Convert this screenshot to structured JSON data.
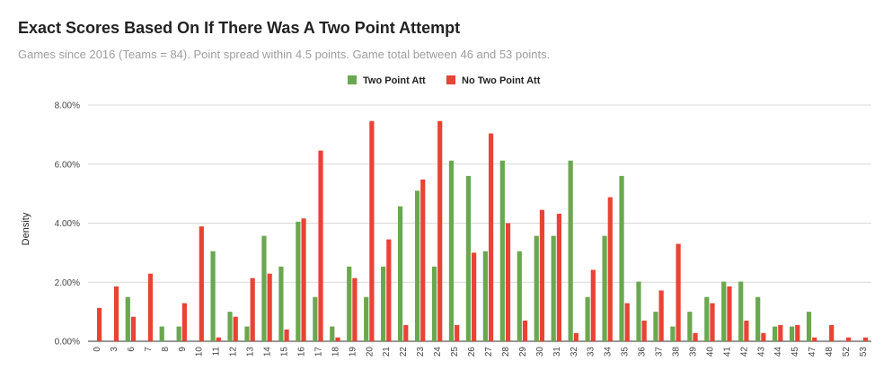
{
  "title": "Exact Scores Based On If There Was A Two Point Attempt",
  "subtitle": "Games since 2016 (Teams = 84). Point spread within 4.5 points. Game total between 46 and 53 points.",
  "colors": {
    "two_point": "#6aa84f",
    "no_two_point": "#e94335",
    "grid": "#d9d9d9",
    "axis": "#333333"
  },
  "chart_data": {
    "type": "bar",
    "title": "Exact Scores Based On If There Was A Two Point Attempt",
    "subtitle": "Games since 2016 (Teams = 84). Point spread within 4.5 points. Game total between 46 and 53 points.",
    "xlabel": "",
    "ylabel": "Density",
    "ylim": [
      0,
      8
    ],
    "y_unit": "%",
    "y_ticks": [
      "0.00%",
      "2.00%",
      "4.00%",
      "6.00%",
      "8.00%"
    ],
    "grid": true,
    "legend_position": "top",
    "categories": [
      "0",
      "3",
      "6",
      "7",
      "8",
      "9",
      "10",
      "11",
      "12",
      "13",
      "14",
      "15",
      "16",
      "17",
      "18",
      "19",
      "20",
      "21",
      "22",
      "23",
      "24",
      "25",
      "26",
      "27",
      "28",
      "29",
      "30",
      "31",
      "32",
      "33",
      "34",
      "35",
      "36",
      "37",
      "38",
      "39",
      "40",
      "41",
      "42",
      "43",
      "44",
      "45",
      "47",
      "48",
      "52",
      "53"
    ],
    "series": [
      {
        "name": "Two Point Att",
        "color": "#6aa84f",
        "values": [
          0,
          0,
          1.5,
          0,
          0.5,
          0.5,
          0,
          3.05,
          1.0,
          0.5,
          3.57,
          2.53,
          4.05,
          1.5,
          0.5,
          2.53,
          1.5,
          2.53,
          4.57,
          5.1,
          2.53,
          6.12,
          5.6,
          3.05,
          6.12,
          3.05,
          3.57,
          3.57,
          6.12,
          1.5,
          3.57,
          5.6,
          2.02,
          1.0,
          0.5,
          1.0,
          1.5,
          2.02,
          2.02,
          1.5,
          0.5,
          0.5,
          1.0,
          0,
          0,
          0
        ]
      },
      {
        "name": "No Two Point Att",
        "color": "#e94335",
        "values": [
          1.13,
          1.86,
          0.83,
          2.29,
          0,
          1.29,
          3.89,
          0.13,
          0.83,
          2.14,
          2.29,
          0.4,
          4.16,
          6.46,
          0.13,
          2.14,
          7.46,
          3.45,
          0.55,
          5.48,
          7.46,
          0.55,
          3.0,
          7.04,
          4.0,
          0.7,
          4.45,
          4.32,
          0.28,
          2.42,
          4.88,
          1.29,
          0.7,
          1.72,
          3.3,
          0.28,
          1.29,
          1.86,
          0.7,
          0.28,
          0.55,
          0.55,
          0.13,
          0.55,
          0.13,
          0.13
        ]
      }
    ]
  }
}
